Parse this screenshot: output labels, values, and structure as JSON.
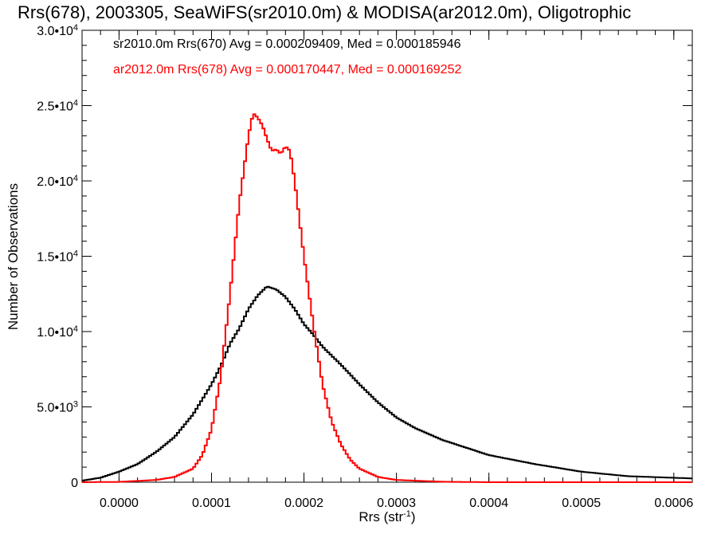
{
  "chart_data": {
    "type": "line",
    "title": "Rrs(678), 2003305, SeaWiFS(sr2010.0m) & MODISA(ar2012.0m), Oligotrophic",
    "xlabel": "Rrs (str",
    "xlabel_sup": "-1",
    "xlabel_end": ")",
    "ylabel": "Number of Observations",
    "xlim": [
      -4e-05,
      0.00062
    ],
    "ylim": [
      0,
      30000
    ],
    "x_ticks": [
      {
        "value": 0.0,
        "label": "0.0000"
      },
      {
        "value": 0.0001,
        "label": "0.0001"
      },
      {
        "value": 0.0002,
        "label": "0.0002"
      },
      {
        "value": 0.0003,
        "label": "0.0003"
      },
      {
        "value": 0.0004,
        "label": "0.0004"
      },
      {
        "value": 0.0005,
        "label": "0.0005"
      },
      {
        "value": 0.0006,
        "label": "0.0006"
      }
    ],
    "y_ticks": [
      {
        "value": 0,
        "mant": "0",
        "exp": ""
      },
      {
        "value": 5000,
        "mant": "5.0•10",
        "exp": "3"
      },
      {
        "value": 10000,
        "mant": "1.0•10",
        "exp": "4"
      },
      {
        "value": 15000,
        "mant": "1.5•10",
        "exp": "4"
      },
      {
        "value": 20000,
        "mant": "2.0•10",
        "exp": "4"
      },
      {
        "value": 25000,
        "mant": "2.5•10",
        "exp": "4"
      },
      {
        "value": 30000,
        "mant": "3.0•10",
        "exp": "4"
      }
    ],
    "annotations": [
      {
        "text": "sr2010.0m Rrs(670) Avg = 0.000209409, Med = 0.000185946",
        "color": "#000000"
      },
      {
        "text": "ar2012.0m Rrs(678) Avg = 0.000170447, Med = 0.000169252",
        "color": "#ff0000"
      }
    ],
    "series": [
      {
        "color": "#000000",
        "x": [
          -4e-05,
          -2e-05,
          0.0,
          2e-05,
          4e-05,
          6e-05,
          8e-05,
          0.0001,
          0.00011,
          0.00012,
          0.00013,
          0.00014,
          0.00015,
          0.00016,
          0.00017,
          0.00018,
          0.00019,
          0.0002,
          0.00021,
          0.00022,
          0.00024,
          0.00026,
          0.00028,
          0.0003,
          0.00032,
          0.00035,
          0.0004,
          0.00045,
          0.0005,
          0.00055,
          0.00062
        ],
        "y": [
          100,
          300,
          700,
          1200,
          2000,
          3000,
          4500,
          6500,
          7700,
          9200,
          10200,
          11500,
          12400,
          13000,
          12800,
          12300,
          11500,
          10500,
          9800,
          9000,
          7800,
          6500,
          5300,
          4300,
          3600,
          2800,
          1800,
          1200,
          700,
          400,
          250
        ]
      },
      {
        "color": "#ff0000",
        "x": [
          -4e-05,
          0.0,
          4e-05,
          6e-05,
          8e-05,
          9e-05,
          0.0001,
          0.00011,
          0.00012,
          0.00013,
          0.00014,
          0.000145,
          0.00015,
          0.000155,
          0.00016,
          0.000165,
          0.00017,
          0.000175,
          0.00018,
          0.000185,
          0.00019,
          0.000195,
          0.0002,
          0.00021,
          0.00022,
          0.00023,
          0.00024,
          0.00025,
          0.00026,
          0.00028,
          0.0003,
          0.00035,
          0.0004,
          0.00062
        ],
        "y": [
          0,
          20,
          150,
          350,
          900,
          1800,
          3500,
          7000,
          12500,
          18500,
          23000,
          24500,
          24200,
          23700,
          22800,
          22000,
          22100,
          21800,
          22300,
          22000,
          20000,
          17500,
          15000,
          10500,
          6500,
          4000,
          2500,
          1500,
          900,
          350,
          150,
          30,
          0,
          0
        ]
      }
    ]
  }
}
